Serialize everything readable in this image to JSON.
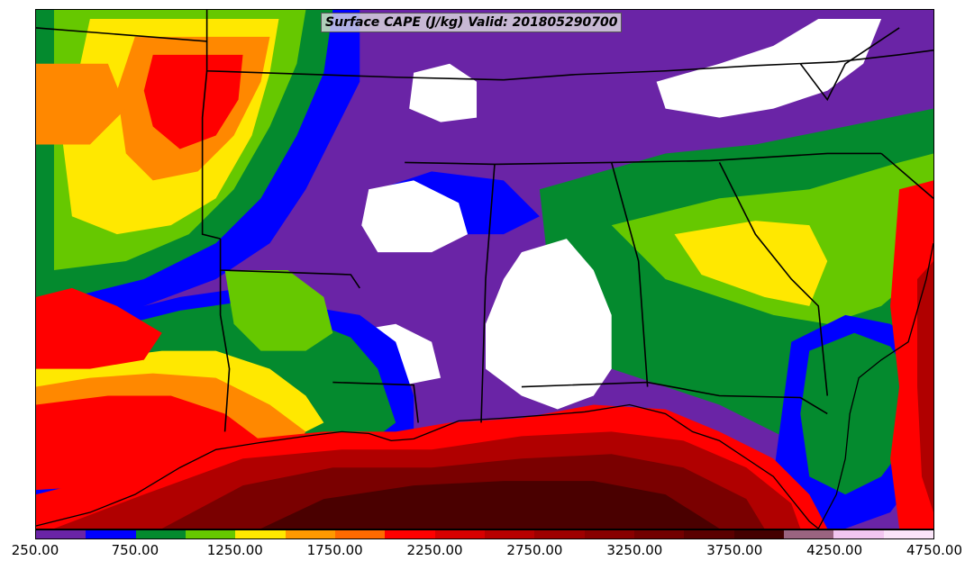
{
  "map": {
    "title": "Surface CAPE (J/kg) Valid: 201805290700"
  },
  "legend": {
    "colors": [
      "#6a24a6",
      "#0000ff",
      "#048a2e",
      "#66c800",
      "#ffe800",
      "#ff9900",
      "#ff6a00",
      "#ff0000",
      "#d80000",
      "#b80000",
      "#9e0000",
      "#880000",
      "#720000",
      "#5a0000",
      "#440000",
      "#9a6480",
      "#f2c6f0",
      "#fae4f8"
    ],
    "tick_labels": [
      "250.00",
      "750.00",
      "1250.00",
      "1750.00",
      "2250.00",
      "2750.00",
      "3250.00",
      "3750.00",
      "4250.00",
      "4750.00"
    ]
  },
  "palette": {
    "background": "#6a24a6",
    "blue": "#0000ff",
    "green": "#048a2e",
    "lightgreen": "#66c800",
    "yellow": "#ffe800",
    "orange": "#ff8800",
    "red": "#ff0000",
    "darkred": "#b00000",
    "maroon": "#7a0000",
    "none": "#ffffff",
    "borders": "#000000"
  }
}
